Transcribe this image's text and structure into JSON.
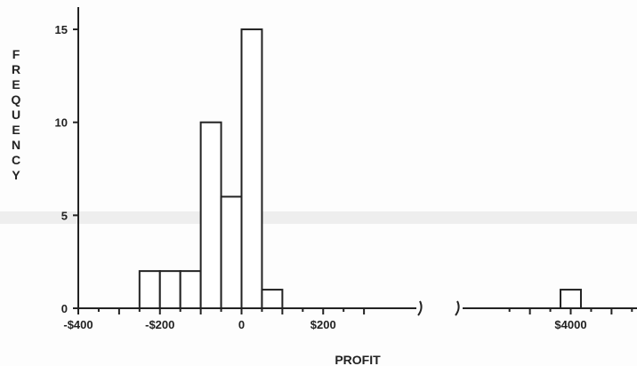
{
  "chart_data": {
    "type": "bar",
    "xlabel": "PROFIT",
    "ylabel": "FREQUENCY",
    "ylim": [
      0,
      16
    ],
    "y_ticks": [
      0,
      5,
      10,
      15
    ],
    "x_ticks": [
      {
        "value": -400,
        "label": "-$400"
      },
      {
        "value": -200,
        "label": "-$200"
      },
      {
        "value": 0,
        "label": "0"
      },
      {
        "value": 200,
        "label": "$200"
      },
      {
        "value": 4000,
        "label": "$4000"
      }
    ],
    "axis_break_between": [
      300,
      3800
    ],
    "bins": [
      {
        "x_start": -250,
        "x_end": -200,
        "value": 2
      },
      {
        "x_start": -200,
        "x_end": -150,
        "value": 2
      },
      {
        "x_start": -150,
        "x_end": -100,
        "value": 2
      },
      {
        "x_start": -100,
        "x_end": -50,
        "value": 10
      },
      {
        "x_start": -50,
        "x_end": 0,
        "value": 6
      },
      {
        "x_start": 0,
        "x_end": 50,
        "value": 15
      },
      {
        "x_start": 50,
        "x_end": 100,
        "value": 1
      },
      {
        "x_start": 3975,
        "x_end": 4025,
        "value": 1
      }
    ],
    "grid": false
  }
}
